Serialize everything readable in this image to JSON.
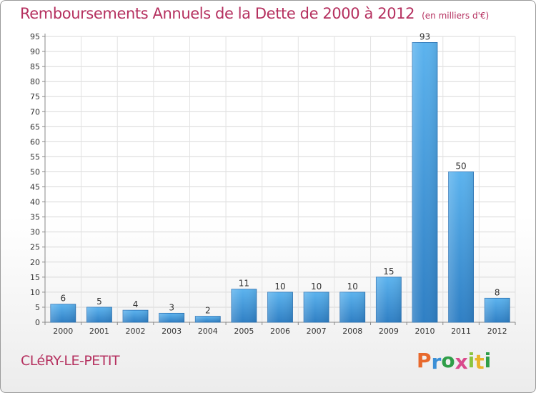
{
  "header": {
    "title": "Remboursements Annuels de la Dette de 2000 à 2012",
    "subtitle": "(en milliers d'€)"
  },
  "footer": {
    "commune": "CLéRY-LE-PETIT",
    "logo_text": "Proxiti",
    "logo_colors": [
      "#e8692d",
      "#3a8fd6",
      "#2f9e48",
      "#d94a8c",
      "#8ac43f",
      "#e9b32a",
      "#2f9e48"
    ]
  },
  "chart_data": {
    "type": "bar",
    "categories": [
      "2000",
      "2001",
      "2002",
      "2003",
      "2004",
      "2005",
      "2006",
      "2007",
      "2008",
      "2009",
      "2010",
      "2011",
      "2012"
    ],
    "values": [
      6,
      5,
      4,
      3,
      2,
      11,
      10,
      10,
      10,
      15,
      93,
      50,
      8
    ],
    "data_labels": [
      "6",
      "5",
      "4",
      "3",
      "2",
      "11",
      "10",
      "10",
      "10",
      "15",
      "93",
      "50",
      "8"
    ],
    "ylim": [
      0,
      95
    ],
    "yticks": [
      0,
      5,
      10,
      15,
      20,
      25,
      30,
      35,
      40,
      45,
      50,
      55,
      60,
      65,
      70,
      75,
      80,
      85,
      90,
      95
    ],
    "ytick_labels": [
      "0",
      "5",
      "10",
      "15",
      "20",
      "25",
      "30",
      "35",
      "40",
      "45",
      "50",
      "55",
      "60",
      "65",
      "70",
      "75",
      "80",
      "85",
      "90",
      "95"
    ],
    "xlabel": "",
    "ylabel": "",
    "grid": true,
    "bar_color": "#4a9fe0"
  }
}
